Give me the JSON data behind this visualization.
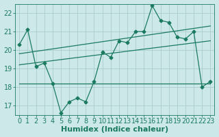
{
  "xlabel": "Humidex (Indice chaleur)",
  "x": [
    0,
    1,
    2,
    3,
    4,
    5,
    6,
    7,
    8,
    9,
    10,
    11,
    12,
    13,
    14,
    15,
    16,
    17,
    18,
    19,
    20,
    21,
    22,
    23
  ],
  "y_main": [
    20.3,
    21.1,
    19.1,
    19.3,
    18.2,
    16.6,
    17.2,
    17.4,
    17.2,
    18.3,
    19.9,
    19.6,
    20.5,
    20.4,
    21.0,
    21.0,
    22.4,
    21.6,
    21.5,
    20.7,
    20.6,
    21.0,
    18.0,
    18.3
  ],
  "y_flat": 18.2,
  "trend1_start": 19.2,
  "trend1_end": 20.5,
  "trend2_start": 19.8,
  "trend2_end": 21.3,
  "line_color": "#1a7a60",
  "bg_color": "#cce8e8",
  "grid_color": "#aacccc",
  "ylim": [
    16.5,
    22.5
  ],
  "xlim": [
    -0.5,
    23.5
  ],
  "yticks": [
    17,
    18,
    19,
    20,
    21,
    22
  ],
  "xticks": [
    0,
    1,
    2,
    3,
    4,
    5,
    6,
    7,
    8,
    9,
    10,
    11,
    12,
    13,
    14,
    15,
    16,
    17,
    18,
    19,
    20,
    21,
    22,
    23
  ],
  "fontsize": 7
}
